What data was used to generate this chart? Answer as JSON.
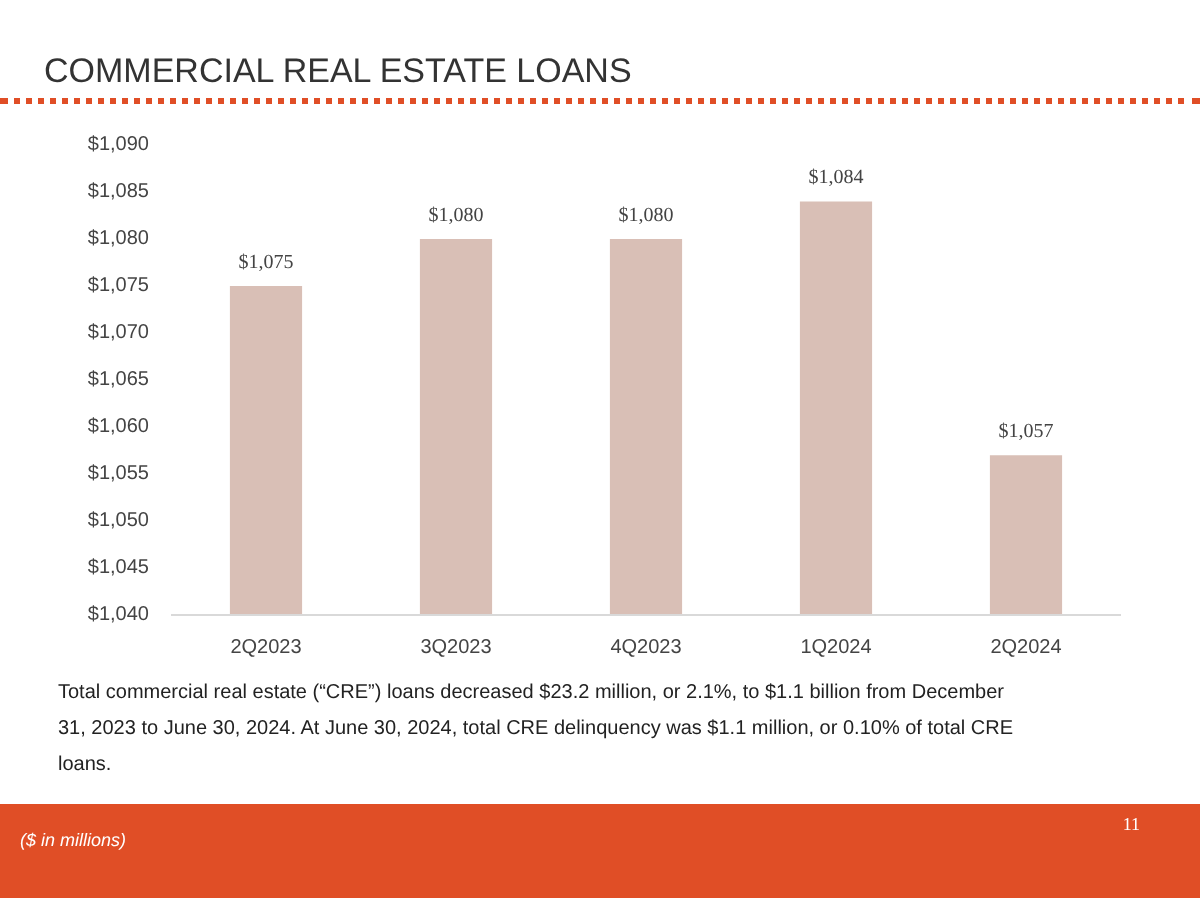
{
  "chart_data": {
    "type": "bar",
    "title": "COMMERCIAL REAL ESTATE LOANS",
    "categories": [
      "2Q2023",
      "3Q2023",
      "4Q2023",
      "1Q2024",
      "2Q2024"
    ],
    "values": [
      1075,
      1080,
      1080,
      1084,
      1057
    ],
    "value_labels": [
      "$1,075",
      "$1,080",
      "$1,080",
      "$1,084",
      "$1,057"
    ],
    "color": "#d9bfb6",
    "ylim": [
      1040,
      1090
    ],
    "yticks": [
      {
        "value": 1040,
        "label": "$1,040"
      },
      {
        "value": 1045,
        "label": "$1,045"
      },
      {
        "value": 1050,
        "label": "$1,050"
      },
      {
        "value": 1055,
        "label": "$1,055"
      },
      {
        "value": 1060,
        "label": "$1,060"
      },
      {
        "value": 1065,
        "label": "$1,065"
      },
      {
        "value": 1070,
        "label": "$1,070"
      },
      {
        "value": 1075,
        "label": "$1,075"
      },
      {
        "value": 1080,
        "label": "$1,080"
      },
      {
        "value": 1085,
        "label": "$1,085"
      },
      {
        "value": 1090,
        "label": "$1,090"
      }
    ],
    "grid": false,
    "annotations": [
      "Total commercial real estate (“CRE”) loans decreased $23.2 million, or 2.1%, to $1.1 billion from December 31, 2023 to June 30, 2024. At June 30, 2024, total CRE delinquency was $1.1 million, or 0.10% of total CRE loans.",
      "($ in millions)",
      "11"
    ]
  }
}
